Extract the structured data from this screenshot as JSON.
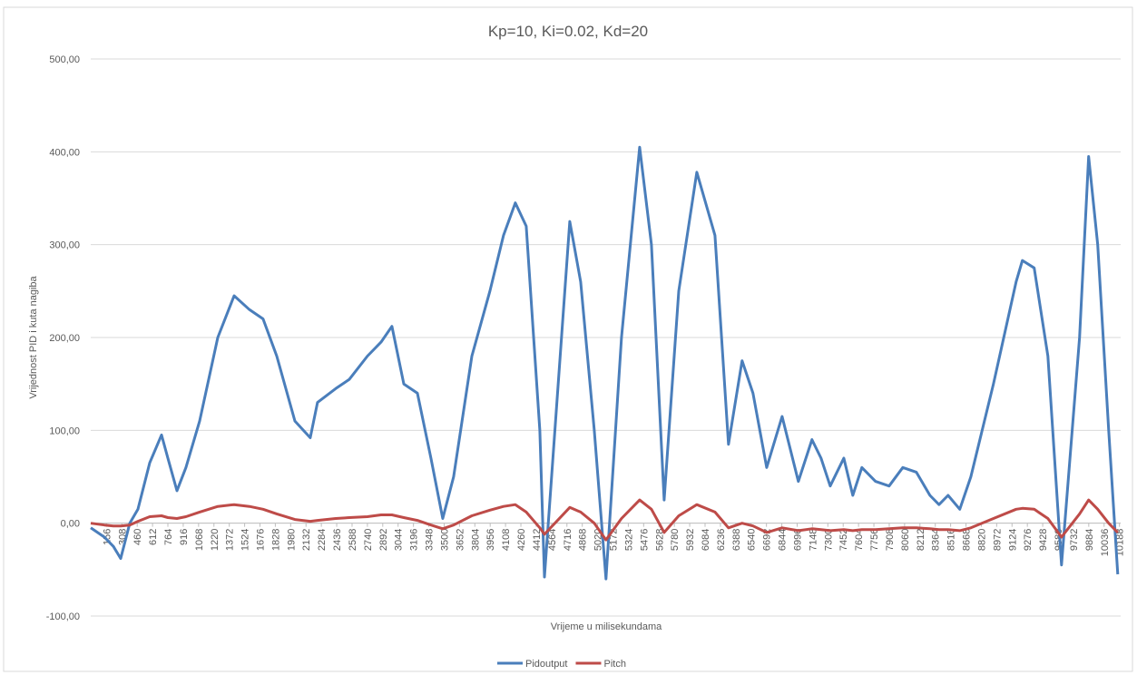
{
  "chart_data": {
    "type": "line",
    "title": "Kp=10, Ki=0.02, Kd=20",
    "x_label": "Vrijeme u milisekundama",
    "y_label": "Vrijednost PID i kuta nagiba",
    "x": [
      0,
      135,
      225,
      297,
      386,
      467,
      584,
      701,
      764,
      854,
      943,
      1078,
      1258,
      1420,
      1572,
      1707,
      1842,
      2022,
      2174,
      2246,
      2426,
      2561,
      2740,
      2875,
      2983,
      3100,
      3235,
      3369,
      3486,
      3594,
      3774,
      3953,
      4088,
      4205,
      4313,
      4448,
      4493,
      4744,
      4852,
      4987,
      5103,
      5256,
      5436,
      5553,
      5679,
      5823,
      6002,
      6182,
      6316,
      6451,
      6559,
      6694,
      6847,
      7008,
      7143,
      7233,
      7323,
      7458,
      7547,
      7637,
      7772,
      7907,
      8042,
      8176,
      8311,
      8401,
      8491,
      8607,
      8716,
      8940,
      9165,
      9227,
      9344,
      9479,
      9614,
      9793,
      9883,
      9973,
      10081,
      10171
    ],
    "series": [
      {
        "name": "Pidoutput",
        "color": "#4a7ebb",
        "values": [
          -5,
          -15,
          -25,
          -38,
          0,
          15,
          65,
          95,
          70,
          35,
          60,
          110,
          200,
          245,
          230,
          220,
          180,
          110,
          92,
          130,
          145,
          155,
          180,
          195,
          212,
          150,
          140,
          70,
          5,
          50,
          180,
          250,
          310,
          345,
          320,
          100,
          -58,
          325,
          260,
          100,
          -60,
          200,
          405,
          300,
          25,
          250,
          378,
          310,
          85,
          175,
          140,
          60,
          115,
          45,
          90,
          70,
          40,
          70,
          30,
          60,
          45,
          40,
          60,
          55,
          30,
          20,
          30,
          15,
          50,
          150,
          260,
          283,
          275,
          180,
          -45,
          200,
          395,
          300,
          100,
          -55
        ]
      },
      {
        "name": "Pitch",
        "color": "#be4b48",
        "values": [
          0,
          -2,
          -3,
          -3,
          -2,
          2,
          7,
          8,
          6,
          5,
          7,
          12,
          18,
          20,
          18,
          15,
          10,
          4,
          2,
          3,
          5,
          6,
          7,
          9,
          9,
          6,
          3,
          -2,
          -6,
          -2,
          8,
          14,
          18,
          20,
          12,
          -5,
          -12,
          17,
          12,
          0,
          -18,
          5,
          25,
          15,
          -10,
          8,
          20,
          12,
          -5,
          0,
          -3,
          -10,
          -5,
          -8,
          -6,
          -7,
          -8,
          -7,
          -8,
          -7,
          -7,
          -6,
          -5,
          -5,
          -6,
          -7,
          -7,
          -8,
          -5,
          5,
          15,
          16,
          15,
          5,
          -15,
          10,
          25,
          15,
          0,
          -10
        ]
      }
    ],
    "xlim": [
      0,
      10200
    ],
    "xticks": [
      156,
      308,
      460,
      612,
      764,
      916,
      1068,
      1220,
      1372,
      1524,
      1676,
      1828,
      1980,
      2132,
      2284,
      2436,
      2588,
      2740,
      2892,
      3044,
      3196,
      3348,
      3500,
      3652,
      3804,
      3956,
      4108,
      4260,
      4412,
      4564,
      4716,
      4868,
      5020,
      5172,
      5324,
      5476,
      5628,
      5780,
      5932,
      6084,
      6236,
      6388,
      6540,
      6692,
      6844,
      6996,
      7148,
      7300,
      7452,
      7604,
      7756,
      7908,
      8060,
      8212,
      8364,
      8516,
      8668,
      8820,
      8972,
      9124,
      9276,
      9428,
      9580,
      9732,
      9884,
      10036,
      10188
    ],
    "ylim": [
      -100,
      500
    ],
    "yticks": [
      {
        "value": -100,
        "label": "-100,00"
      },
      {
        "value": 0,
        "label": "0,00"
      },
      {
        "value": 100,
        "label": "100,00"
      },
      {
        "value": 200,
        "label": "200,00"
      },
      {
        "value": 300,
        "label": "300,00"
      },
      {
        "value": 400,
        "label": "400,00"
      },
      {
        "value": 500,
        "label": "500,00"
      }
    ],
    "grid": true,
    "legend": "bottom"
  }
}
